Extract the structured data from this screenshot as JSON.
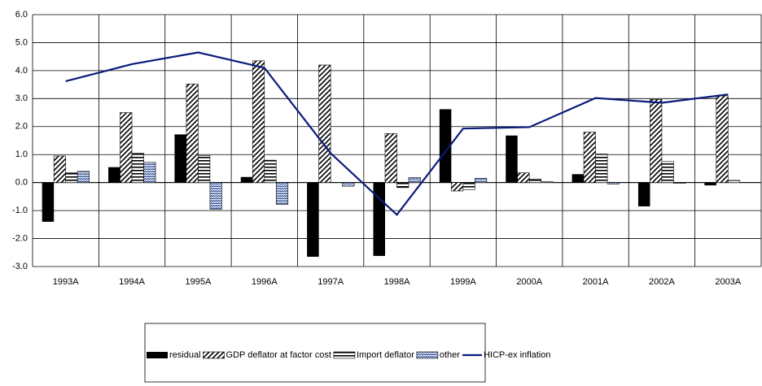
{
  "chart_data": {
    "type": "bar_line",
    "categories": [
      "1993A",
      "1994A",
      "1995A",
      "1996A",
      "1997A",
      "1998A",
      "1999A",
      "2000A",
      "2001A",
      "2002A",
      "2003A"
    ],
    "series": [
      {
        "name": "residual",
        "type": "bar",
        "color": "#000000",
        "hatch": "solid",
        "values": [
          -1.4,
          0.55,
          1.72,
          0.2,
          -2.65,
          -2.62,
          2.62,
          1.68,
          0.3,
          -0.85,
          -0.1
        ]
      },
      {
        "name": "GDP deflator at factor cost",
        "type": "bar",
        "color": "#000000",
        "hatch": "diagonal",
        "values": [
          0.95,
          2.5,
          3.52,
          4.35,
          4.2,
          1.75,
          -0.3,
          0.35,
          1.8,
          2.97,
          3.1
        ]
      },
      {
        "name": "Import deflator",
        "type": "bar",
        "color": "#000000",
        "hatch": "horizontal",
        "values": [
          0.35,
          1.05,
          0.97,
          0.8,
          0.0,
          -0.18,
          -0.25,
          0.12,
          1.02,
          0.75,
          0.08
        ]
      },
      {
        "name": "other",
        "type": "bar",
        "color": "#1f3f8f",
        "hatch": "wave",
        "values": [
          0.4,
          0.72,
          -0.95,
          -0.78,
          -0.13,
          0.18,
          0.15,
          0.03,
          -0.05,
          -0.03,
          0.0
        ]
      },
      {
        "name": "HICP-ex inflation",
        "type": "line",
        "color": "#0a1a7a",
        "values": [
          3.62,
          4.23,
          4.65,
          4.1,
          1.05,
          -1.15,
          1.93,
          1.98,
          3.02,
          2.85,
          3.15
        ]
      }
    ],
    "ylim": [
      -3,
      6
    ],
    "yticks": [
      {
        "value": -3,
        "label": "-3.0"
      },
      {
        "value": -2,
        "label": "-2.0"
      },
      {
        "value": -1,
        "label": "-1.0"
      },
      {
        "value": 0,
        "label": "0.0"
      },
      {
        "value": 1,
        "label": "1.0"
      },
      {
        "value": 2,
        "label": "2.0"
      },
      {
        "value": 3,
        "label": "3.0"
      },
      {
        "value": 4,
        "label": "4.0"
      },
      {
        "value": 5,
        "label": "5.0"
      },
      {
        "value": 6,
        "label": "6.0"
      }
    ],
    "grid": true,
    "legend": "bottom"
  }
}
